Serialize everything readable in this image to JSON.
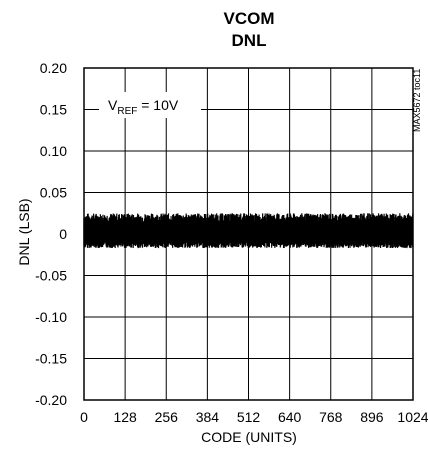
{
  "chart_data": {
    "type": "line",
    "title": "VCOM",
    "subtitle": "DNL",
    "xlabel": "CODE (UNITS)",
    "ylabel": "DNL (LSB)",
    "xlim": [
      0,
      1024
    ],
    "ylim": [
      -0.2,
      0.2
    ],
    "x_ticks": [
      0,
      128,
      256,
      384,
      512,
      640,
      768,
      896,
      1024
    ],
    "y_ticks": [
      0.2,
      0.15,
      0.1,
      0.05,
      0,
      -0.05,
      -0.1,
      -0.15,
      -0.2
    ],
    "y_tick_labels": [
      "0.20",
      "0.15",
      "0.10",
      "0.05",
      "0",
      "-0.05",
      "-0.10",
      "-0.15",
      "-0.20"
    ],
    "grid": true,
    "series": [
      {
        "x": [
          0,
          1023
        ],
        "y_upper_envelope": [
          0.025,
          0.025
        ],
        "y_lower_envelope": [
          -0.017,
          -0.017
        ]
      }
    ],
    "annotation": {
      "main": "V",
      "sub": "REF",
      "rest": " = 10V"
    },
    "figure_id": "MAX5672 toc11"
  }
}
